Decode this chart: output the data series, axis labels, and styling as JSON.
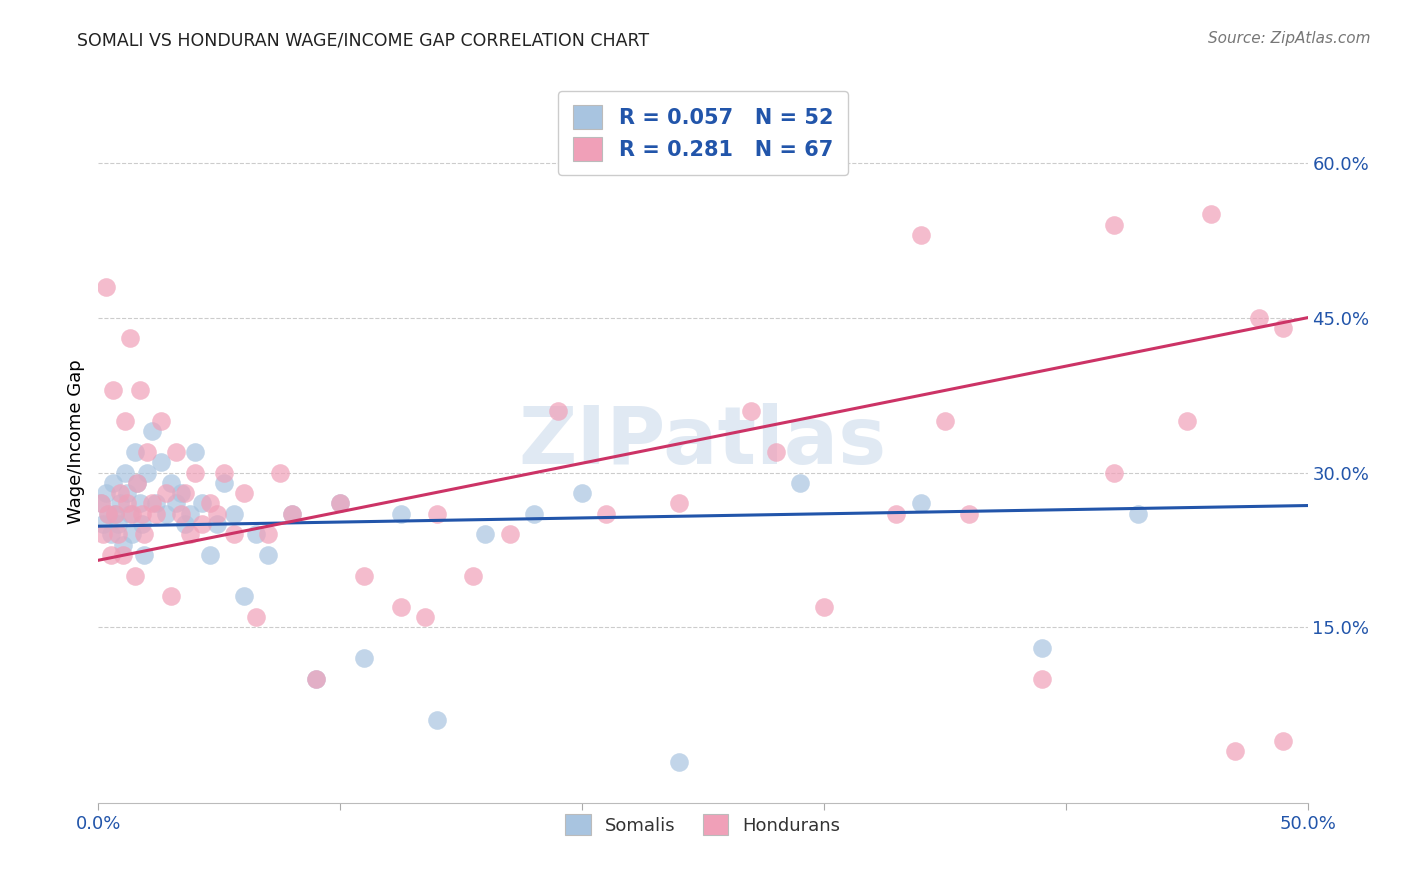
{
  "title": "SOMALI VS HONDURAN WAGE/INCOME GAP CORRELATION CHART",
  "source": "Source: ZipAtlas.com",
  "ylabel": "Wage/Income Gap",
  "xlim": [
    0.0,
    0.5
  ],
  "ylim": [
    -0.02,
    0.68
  ],
  "yticks": [
    0.15,
    0.3,
    0.45,
    0.6
  ],
  "ytick_labels": [
    "15.0%",
    "30.0%",
    "45.0%",
    "60.0%"
  ],
  "xticks": [
    0.0,
    0.1,
    0.2,
    0.3,
    0.4,
    0.5
  ],
  "xtick_labels": [
    "0.0%",
    "",
    "",
    "",
    "",
    "50.0%"
  ],
  "somali_color": "#a8c4e0",
  "honduran_color": "#f0a0b8",
  "somali_line_color": "#2255aa",
  "honduran_line_color": "#cc3366",
  "somali_R": 0.057,
  "somali_N": 52,
  "honduran_R": 0.281,
  "honduran_N": 67,
  "legend_label_somali": "Somalis",
  "legend_label_honduran": "Hondurans",
  "watermark": "ZIPatlas",
  "somali_x": [
    0.001,
    0.002,
    0.003,
    0.004,
    0.005,
    0.006,
    0.007,
    0.008,
    0.009,
    0.01,
    0.011,
    0.012,
    0.013,
    0.014,
    0.015,
    0.016,
    0.017,
    0.018,
    0.019,
    0.02,
    0.022,
    0.024,
    0.026,
    0.028,
    0.03,
    0.032,
    0.034,
    0.036,
    0.038,
    0.04,
    0.043,
    0.046,
    0.049,
    0.052,
    0.056,
    0.06,
    0.065,
    0.07,
    0.08,
    0.09,
    0.1,
    0.11,
    0.125,
    0.14,
    0.16,
    0.18,
    0.2,
    0.24,
    0.29,
    0.34,
    0.39,
    0.43
  ],
  "somali_y": [
    0.27,
    0.25,
    0.28,
    0.26,
    0.24,
    0.29,
    0.26,
    0.25,
    0.27,
    0.23,
    0.3,
    0.28,
    0.26,
    0.24,
    0.32,
    0.29,
    0.27,
    0.25,
    0.22,
    0.3,
    0.34,
    0.27,
    0.31,
    0.26,
    0.29,
    0.27,
    0.28,
    0.25,
    0.26,
    0.32,
    0.27,
    0.22,
    0.25,
    0.29,
    0.26,
    0.18,
    0.24,
    0.22,
    0.26,
    0.1,
    0.27,
    0.12,
    0.26,
    0.06,
    0.24,
    0.26,
    0.28,
    0.02,
    0.29,
    0.27,
    0.13,
    0.26
  ],
  "honduran_x": [
    0.001,
    0.002,
    0.003,
    0.004,
    0.005,
    0.006,
    0.007,
    0.008,
    0.009,
    0.01,
    0.011,
    0.012,
    0.013,
    0.014,
    0.015,
    0.016,
    0.017,
    0.018,
    0.019,
    0.02,
    0.022,
    0.024,
    0.026,
    0.028,
    0.03,
    0.032,
    0.034,
    0.036,
    0.038,
    0.04,
    0.043,
    0.046,
    0.049,
    0.052,
    0.056,
    0.06,
    0.065,
    0.07,
    0.075,
    0.08,
    0.09,
    0.1,
    0.11,
    0.125,
    0.14,
    0.155,
    0.17,
    0.19,
    0.21,
    0.24,
    0.27,
    0.3,
    0.33,
    0.36,
    0.39,
    0.42,
    0.45,
    0.47,
    0.49,
    0.34,
    0.28,
    0.42,
    0.35,
    0.46,
    0.48,
    0.135,
    0.49
  ],
  "honduran_y": [
    0.27,
    0.24,
    0.48,
    0.26,
    0.22,
    0.38,
    0.26,
    0.24,
    0.28,
    0.22,
    0.35,
    0.27,
    0.43,
    0.26,
    0.2,
    0.29,
    0.38,
    0.26,
    0.24,
    0.32,
    0.27,
    0.26,
    0.35,
    0.28,
    0.18,
    0.32,
    0.26,
    0.28,
    0.24,
    0.3,
    0.25,
    0.27,
    0.26,
    0.3,
    0.24,
    0.28,
    0.16,
    0.24,
    0.3,
    0.26,
    0.1,
    0.27,
    0.2,
    0.17,
    0.26,
    0.2,
    0.24,
    0.36,
    0.26,
    0.27,
    0.36,
    0.17,
    0.26,
    0.26,
    0.1,
    0.3,
    0.35,
    0.03,
    0.44,
    0.53,
    0.32,
    0.54,
    0.35,
    0.55,
    0.45,
    0.16,
    0.04
  ],
  "somali_line_x0": 0.0,
  "somali_line_x1": 0.5,
  "somali_line_y0": 0.248,
  "somali_line_y1": 0.268,
  "honduran_line_x0": 0.0,
  "honduran_line_x1": 0.5,
  "honduran_line_y0": 0.215,
  "honduran_line_y1": 0.45
}
